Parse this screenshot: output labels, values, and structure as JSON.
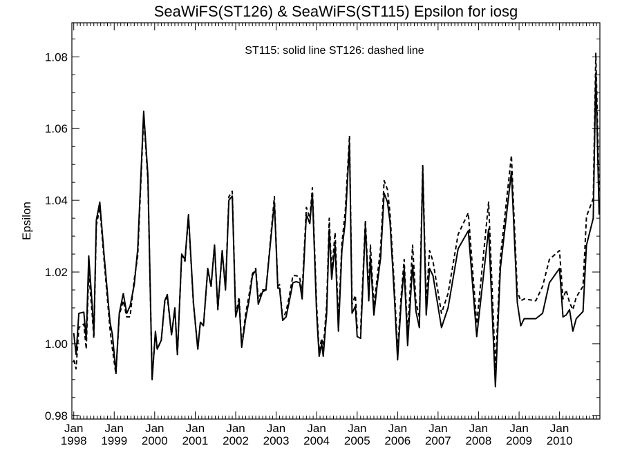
{
  "chart_data": {
    "type": "line",
    "title": "SeaWiFS(ST126) & SeaWiFS(ST115)  Epsilon for iosg",
    "annotation": "ST115: solid line   ST126: dashed line",
    "xlabel": "",
    "ylabel": "Epsilon",
    "xlim": [
      "1997-12-15",
      "2010-12-31"
    ],
    "ylim": [
      0.979,
      1.0895
    ],
    "grid": false,
    "legend": "none",
    "y_ticks": [
      "0.98",
      "1.00",
      "1.02",
      "1.04",
      "1.06",
      "1.08"
    ],
    "x_ticks": [
      {
        "month": "Jan",
        "year": "1998"
      },
      {
        "month": "Jan",
        "year": "1999"
      },
      {
        "month": "Jan",
        "year": "2000"
      },
      {
        "month": "Jan",
        "year": "2001"
      },
      {
        "month": "Jan",
        "year": "2002"
      },
      {
        "month": "Jan",
        "year": "2003"
      },
      {
        "month": "Jan",
        "year": "2004"
      },
      {
        "month": "Jan",
        "year": "2005"
      },
      {
        "month": "Jan",
        "year": "2006"
      },
      {
        "month": "Jan",
        "year": "2007"
      },
      {
        "month": "Jan",
        "year": "2008"
      },
      {
        "month": "Jan",
        "year": "2009"
      },
      {
        "month": "Jan",
        "year": "2010"
      }
    ],
    "series": [
      {
        "name": "ST115",
        "style": "solid",
        "color": "#000000",
        "points": [
          [
            "1998-01-01",
            1.003
          ],
          [
            "1998-01-22",
            0.997
          ],
          [
            "1998-02-16",
            1.0085
          ],
          [
            "1998-04-02",
            1.0088
          ],
          [
            "1998-04-24",
            1.0012
          ],
          [
            "1998-05-16",
            1.0245
          ],
          [
            "1998-06-16",
            1.011
          ],
          [
            "1998-07-01",
            1.003
          ],
          [
            "1998-07-24",
            1.0345
          ],
          [
            "1998-08-24",
            1.0395
          ],
          [
            "1998-10-01",
            1.025
          ],
          [
            "1998-11-24",
            1.006
          ],
          [
            "1998-12-16",
            1.0025
          ],
          [
            "1999-01-16",
            0.992
          ],
          [
            "1999-02-16",
            1.0085
          ],
          [
            "1999-03-24",
            1.014
          ],
          [
            "1999-04-24",
            1.0085
          ],
          [
            "1999-05-24",
            1.0105
          ],
          [
            "1999-07-01",
            1.0165
          ],
          [
            "1999-08-01",
            1.0265
          ],
          [
            "1999-09-24",
            1.0648
          ],
          [
            "1999-11-01",
            1.047
          ],
          [
            "1999-12-09",
            0.99
          ],
          [
            "2000-01-08",
            1.0035
          ],
          [
            "2000-01-24",
            0.9985
          ],
          [
            "2000-03-01",
            1.001
          ],
          [
            "2000-04-01",
            1.012
          ],
          [
            "2000-04-24",
            1.0137
          ],
          [
            "2000-06-01",
            1.0025
          ],
          [
            "2000-07-01",
            1.01
          ],
          [
            "2000-07-24",
            0.997
          ],
          [
            "2000-09-01",
            1.025
          ],
          [
            "2000-10-01",
            1.0235
          ],
          [
            "2000-11-01",
            1.036
          ],
          [
            "2000-12-16",
            1.0115
          ],
          [
            "2001-01-24",
            0.9985
          ],
          [
            "2001-02-16",
            1.006
          ],
          [
            "2001-03-16",
            1.005
          ],
          [
            "2001-04-24",
            1.021
          ],
          [
            "2001-05-24",
            1.016
          ],
          [
            "2001-06-24",
            1.0275
          ],
          [
            "2001-07-24",
            1.0098
          ],
          [
            "2001-09-01",
            1.026
          ],
          [
            "2001-10-01",
            1.015
          ],
          [
            "2001-11-01",
            1.04
          ],
          [
            "2001-12-01",
            1.0412
          ],
          [
            "2002-01-01",
            1.0075
          ],
          [
            "2002-02-01",
            1.0115
          ],
          [
            "2002-02-24",
            0.999
          ],
          [
            "2002-04-01",
            1.007
          ],
          [
            "2002-05-01",
            1.012
          ],
          [
            "2002-06-01",
            1.019
          ],
          [
            "2002-07-01",
            1.0205
          ],
          [
            "2002-07-24",
            1.011
          ],
          [
            "2002-09-01",
            1.0145
          ],
          [
            "2002-10-01",
            1.015
          ],
          [
            "2002-12-16",
            1.0395
          ],
          [
            "2003-01-16",
            1.0155
          ],
          [
            "2003-02-01",
            1.0155
          ],
          [
            "2003-03-01",
            1.0065
          ],
          [
            "2003-04-01",
            1.0075
          ],
          [
            "2003-05-01",
            1.012
          ],
          [
            "2003-06-01",
            1.017
          ],
          [
            "2003-07-01",
            1.0173
          ],
          [
            "2003-08-01",
            1.017
          ],
          [
            "2003-08-24",
            1.0125
          ],
          [
            "2003-10-01",
            1.036
          ],
          [
            "2003-11-01",
            1.0335
          ],
          [
            "2003-11-24",
            1.042
          ],
          [
            "2004-01-01",
            1.0085
          ],
          [
            "2004-01-24",
            0.9965
          ],
          [
            "2004-02-16",
            1.0
          ],
          [
            "2004-03-01",
            0.9965
          ],
          [
            "2004-04-01",
            1.0085
          ],
          [
            "2004-04-24",
            1.032
          ],
          [
            "2004-05-16",
            1.018
          ],
          [
            "2004-06-16",
            1.0275
          ],
          [
            "2004-07-16",
            1.0035
          ],
          [
            "2004-08-16",
            1.026
          ],
          [
            "2004-09-16",
            1.034
          ],
          [
            "2004-10-24",
            1.056
          ],
          [
            "2004-11-16",
            1.0085
          ],
          [
            "2004-12-16",
            1.0105
          ],
          [
            "2005-01-01",
            1.002
          ],
          [
            "2005-02-01",
            1.0015
          ],
          [
            "2005-03-16",
            1.033
          ],
          [
            "2005-04-16",
            1.012
          ],
          [
            "2005-05-01",
            1.024
          ],
          [
            "2005-06-01",
            1.008
          ],
          [
            "2005-07-01",
            1.0165
          ],
          [
            "2005-08-01",
            1.024
          ],
          [
            "2005-09-01",
            1.042
          ],
          [
            "2005-10-01",
            1.0395
          ],
          [
            "2005-10-24",
            1.034
          ],
          [
            "2005-12-01",
            1.014
          ],
          [
            "2006-01-01",
            0.9955
          ],
          [
            "2006-02-01",
            1.011
          ],
          [
            "2006-03-01",
            1.021
          ],
          [
            "2006-04-01",
            0.9995
          ],
          [
            "2006-05-16",
            1.022
          ],
          [
            "2006-06-16",
            1.009
          ],
          [
            "2006-07-16",
            1.0045
          ],
          [
            "2006-08-16",
            1.0485
          ],
          [
            "2006-09-16",
            1.008
          ],
          [
            "2006-10-16",
            1.021
          ],
          [
            "2006-11-16",
            1.019
          ],
          [
            "2007-02-01",
            1.0045
          ],
          [
            "2007-04-01",
            1.01
          ],
          [
            "2007-07-01",
            1.0265
          ],
          [
            "2007-10-01",
            1.0315
          ],
          [
            "2007-12-16",
            1.002
          ],
          [
            "2008-04-01",
            1.032
          ],
          [
            "2008-06-01",
            0.988
          ],
          [
            "2008-07-16",
            1.021
          ],
          [
            "2008-10-24",
            1.048
          ],
          [
            "2008-12-16",
            1.0115
          ],
          [
            "2009-01-16",
            1.005
          ],
          [
            "2009-02-16",
            1.007
          ],
          [
            "2009-06-01",
            1.007
          ],
          [
            "2009-08-01",
            1.0085
          ],
          [
            "2009-10-01",
            1.017
          ],
          [
            "2010-01-01",
            1.021
          ],
          [
            "2010-02-01",
            1.0075
          ],
          [
            "2010-03-01",
            1.008
          ],
          [
            "2010-04-01",
            1.0095
          ],
          [
            "2010-05-01",
            1.0035
          ],
          [
            "2010-06-01",
            1.007
          ],
          [
            "2010-08-01",
            1.009
          ],
          [
            "2010-09-01",
            1.0275
          ],
          [
            "2010-11-01",
            1.035
          ],
          [
            "2010-11-24",
            1.0755
          ],
          [
            "2010-12-24",
            1.036
          ]
        ]
      },
      {
        "name": "ST126",
        "style": "dashed",
        "color": "#000000",
        "points": [
          [
            "1998-01-01",
            0.9955
          ],
          [
            "1998-01-22",
            0.993
          ],
          [
            "1998-02-16",
            1.0045
          ],
          [
            "1998-04-02",
            1.0055
          ],
          [
            "1998-04-24",
            0.9985
          ],
          [
            "1998-05-16",
            1.02
          ],
          [
            "1998-06-16",
            1.0085
          ],
          [
            "1998-07-01",
            1.0015
          ],
          [
            "1998-07-24",
            1.033
          ],
          [
            "1998-08-24",
            1.038
          ],
          [
            "1998-10-01",
            1.0235
          ],
          [
            "1998-11-24",
            1.004
          ],
          [
            "1998-12-16",
            0.9985
          ],
          [
            "1999-01-16",
            0.9915
          ],
          [
            "1999-02-16",
            1.008
          ],
          [
            "1999-03-24",
            1.012
          ],
          [
            "1999-04-24",
            1.0075
          ],
          [
            "1999-05-24",
            1.0075
          ],
          [
            "1999-07-01",
            1.018
          ],
          [
            "1999-08-01",
            1.0245
          ],
          [
            "1999-09-24",
            1.0635
          ],
          [
            "1999-11-01",
            1.0455
          ],
          [
            "1999-12-09",
            0.9905
          ],
          [
            "2000-01-08",
            1.003
          ],
          [
            "2000-01-24",
            0.9985
          ],
          [
            "2000-03-01",
            1.001
          ],
          [
            "2000-04-01",
            1.0115
          ],
          [
            "2000-04-24",
            1.013
          ],
          [
            "2000-06-01",
            1.0025
          ],
          [
            "2000-07-01",
            1.0095
          ],
          [
            "2000-07-24",
            0.997
          ],
          [
            "2000-09-01",
            1.0245
          ],
          [
            "2000-10-01",
            1.023
          ],
          [
            "2000-11-01",
            1.0355
          ],
          [
            "2000-12-16",
            1.011
          ],
          [
            "2001-01-24",
            0.9985
          ],
          [
            "2001-02-16",
            1.006
          ],
          [
            "2001-03-16",
            1.005
          ],
          [
            "2001-04-24",
            1.0205
          ],
          [
            "2001-05-24",
            1.016
          ],
          [
            "2001-06-24",
            1.0275
          ],
          [
            "2001-07-24",
            1.0095
          ],
          [
            "2001-09-01",
            1.0255
          ],
          [
            "2001-10-01",
            1.0155
          ],
          [
            "2001-11-01",
            1.041
          ],
          [
            "2001-12-01",
            1.0425
          ],
          [
            "2002-01-01",
            1.008
          ],
          [
            "2002-02-01",
            1.013
          ],
          [
            "2002-02-24",
            0.9995
          ],
          [
            "2002-04-01",
            1.0085
          ],
          [
            "2002-05-01",
            1.0135
          ],
          [
            "2002-06-01",
            1.0195
          ],
          [
            "2002-07-01",
            1.021
          ],
          [
            "2002-07-24",
            1.0125
          ],
          [
            "2002-09-01",
            1.015
          ],
          [
            "2002-10-01",
            1.015
          ],
          [
            "2002-12-16",
            1.041
          ],
          [
            "2003-01-16",
            1.016
          ],
          [
            "2003-02-01",
            1.0165
          ],
          [
            "2003-03-01",
            1.007
          ],
          [
            "2003-04-01",
            1.009
          ],
          [
            "2003-05-01",
            1.0135
          ],
          [
            "2003-06-01",
            1.019
          ],
          [
            "2003-07-01",
            1.019
          ],
          [
            "2003-08-01",
            1.0185
          ],
          [
            "2003-08-24",
            1.0145
          ],
          [
            "2003-10-01",
            1.038
          ],
          [
            "2003-11-01",
            1.035
          ],
          [
            "2003-11-24",
            1.0435
          ],
          [
            "2004-01-01",
            1.011
          ],
          [
            "2004-01-24",
            0.998
          ],
          [
            "2004-02-16",
            1.0015
          ],
          [
            "2004-03-01",
            0.9985
          ],
          [
            "2004-04-01",
            1.011
          ],
          [
            "2004-04-24",
            1.035
          ],
          [
            "2004-05-16",
            1.02
          ],
          [
            "2004-06-16",
            1.031
          ],
          [
            "2004-07-16",
            1.006
          ],
          [
            "2004-08-16",
            1.028
          ],
          [
            "2004-09-16",
            1.037
          ],
          [
            "2004-10-24",
            1.058
          ],
          [
            "2004-11-16",
            1.011
          ],
          [
            "2004-12-16",
            1.0135
          ],
          [
            "2005-01-01",
            1.0045
          ],
          [
            "2005-02-01",
            1.004
          ],
          [
            "2005-03-16",
            1.0345
          ],
          [
            "2005-04-16",
            1.0145
          ],
          [
            "2005-05-01",
            1.0275
          ],
          [
            "2005-06-01",
            1.0105
          ],
          [
            "2005-07-01",
            1.0185
          ],
          [
            "2005-08-01",
            1.027
          ],
          [
            "2005-09-01",
            1.0455
          ],
          [
            "2005-10-01",
            1.043
          ],
          [
            "2005-10-24",
            1.0365
          ],
          [
            "2005-12-01",
            1.0165
          ],
          [
            "2006-01-01",
            0.998
          ],
          [
            "2006-02-01",
            1.013
          ],
          [
            "2006-03-01",
            1.0235
          ],
          [
            "2006-04-01",
            1.0025
          ],
          [
            "2006-05-16",
            1.0275
          ],
          [
            "2006-06-16",
            1.0115
          ],
          [
            "2006-07-16",
            1.0075
          ],
          [
            "2006-08-16",
            1.05
          ],
          [
            "2006-09-16",
            1.0115
          ],
          [
            "2006-10-16",
            1.026
          ],
          [
            "2006-11-16",
            1.023
          ],
          [
            "2007-02-01",
            1.0085
          ],
          [
            "2007-04-01",
            1.014
          ],
          [
            "2007-07-01",
            1.0305
          ],
          [
            "2007-10-01",
            1.0365
          ],
          [
            "2007-12-16",
            1.0055
          ],
          [
            "2008-04-01",
            1.0395
          ],
          [
            "2008-06-01",
            0.993
          ],
          [
            "2008-07-16",
            1.024
          ],
          [
            "2008-10-24",
            1.0525
          ],
          [
            "2008-12-16",
            1.0145
          ],
          [
            "2009-01-16",
            1.012
          ],
          [
            "2009-02-16",
            1.0125
          ],
          [
            "2009-06-01",
            1.012
          ],
          [
            "2009-08-01",
            1.016
          ],
          [
            "2009-10-01",
            1.0235
          ],
          [
            "2010-01-01",
            1.026
          ],
          [
            "2010-02-01",
            1.0125
          ],
          [
            "2010-03-01",
            1.015
          ],
          [
            "2010-04-01",
            1.0115
          ],
          [
            "2010-05-01",
            1.0095
          ],
          [
            "2010-06-01",
            1.013
          ],
          [
            "2010-08-01",
            1.016
          ],
          [
            "2010-09-01",
            1.0355
          ],
          [
            "2010-11-01",
            1.0405
          ],
          [
            "2010-11-24",
            1.081
          ],
          [
            "2010-12-24",
            1.0425
          ]
        ]
      }
    ]
  }
}
